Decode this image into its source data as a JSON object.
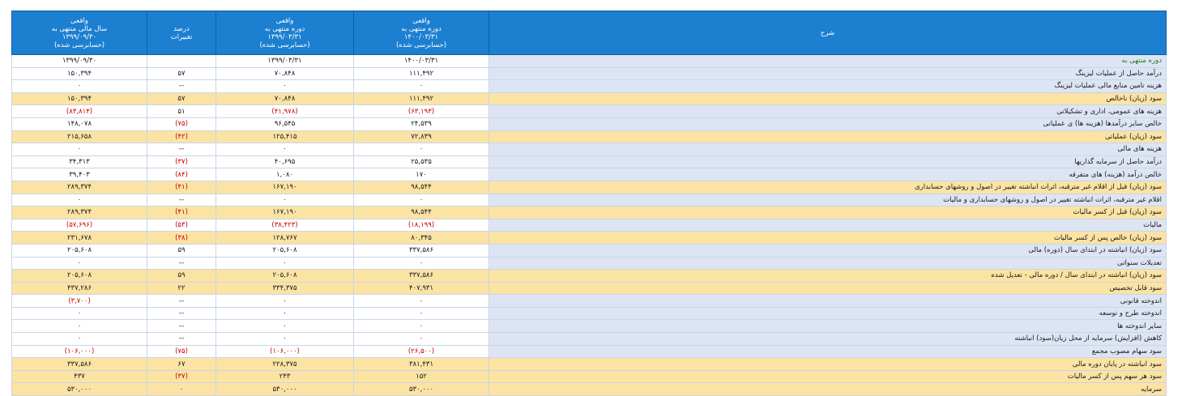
{
  "headers": {
    "desc": "شرح",
    "col1": [
      "واقعی",
      "دوره منتهی به",
      "۱۴۰۰/۰۳/۳۱",
      "(حسابرسی شده)"
    ],
    "col2": [
      "واقعی",
      "دوره منتهی به",
      "۱۳۹۹/۰۳/۳۱",
      "(حسابرسی شده)"
    ],
    "col3": [
      "درصد",
      "تغییرات"
    ],
    "col4": [
      "واقعی",
      "سال مالی منتهی به",
      "۱۳۹۹/۰۹/۳۰",
      "(حسابرسی شده)"
    ]
  },
  "rows": [
    {
      "label": "دوره منتهی به",
      "v1": "۱۴۰۰/۰۳/۳۱",
      "v2": "۱۳۹۹/۰۳/۳۱",
      "pct": "",
      "v4": "۱۳۹۹/۰۹/۳۰",
      "hl": false,
      "period": true,
      "neg": []
    },
    {
      "label": "درآمد حاصل از عملیات لیزینگ",
      "v1": "۱۱۱,۴۹۲",
      "v2": "۷۰,۸۴۸",
      "pct": "۵۷",
      "v4": "۱۵۰,۳۹۴",
      "hl": false,
      "neg": []
    },
    {
      "label": "هزینه تامین منابع مالی عملیات لیزینگ",
      "v1": "۰",
      "v2": "۰",
      "pct": "--",
      "v4": "۰",
      "hl": false,
      "neg": []
    },
    {
      "label": "سود (زیان) ناخالص",
      "v1": "۱۱۱,۴۹۲",
      "v2": "۷۰,۸۴۸",
      "pct": "۵۷",
      "v4": "۱۵۰,۳۹۴",
      "hl": true,
      "neg": []
    },
    {
      "label": "هزینه های عمومی، اداری و تشکیلاتی",
      "v1": "(۶۳,۱۹۳)",
      "v2": "(۴۱,۹۷۸)",
      "pct": "۵۱",
      "v4": "(۸۳,۸۱۴)",
      "hl": false,
      "neg": [
        "v1",
        "v2",
        "v4"
      ]
    },
    {
      "label": "خالص سایر درآمدها (هزینه ها) ی عملیاتی",
      "v1": "۲۴,۵۳۹",
      "v2": "۹۶,۵۴۵",
      "pct": "(۷۵)",
      "v4": "۱۴۸,۰۷۸",
      "hl": false,
      "neg": [
        "pct"
      ]
    },
    {
      "label": "سود (زیان) عملیاتی",
      "v1": "۷۲,۸۳۹",
      "v2": "۱۲۵,۴۱۵",
      "pct": "(۴۲)",
      "v4": "۲۱۵,۶۵۸",
      "hl": true,
      "neg": [
        "pct"
      ]
    },
    {
      "label": "هزینه های مالی",
      "v1": "۰",
      "v2": "۰",
      "pct": "--",
      "v4": "۰",
      "hl": false,
      "neg": []
    },
    {
      "label": "درآمد حاصل از سرمایه گذاریها",
      "v1": "۲۵,۵۳۵",
      "v2": "۴۰,۶۹۵",
      "pct": "(۳۷)",
      "v4": "۳۴,۳۱۳",
      "hl": false,
      "neg": [
        "pct"
      ]
    },
    {
      "label": "خالص درآمد (هزینه) های متفرقه",
      "v1": "۱۷۰",
      "v2": "۱,۰۸۰",
      "pct": "(۸۴)",
      "v4": "۳۹,۴۰۳",
      "hl": false,
      "neg": [
        "pct"
      ]
    },
    {
      "label": "سود (زیان) قبل از اقلام غیر مترقبه، اثرات انباشته تغییر در اصول و روشهای حسابداری",
      "v1": "۹۸,۵۴۴",
      "v2": "۱۶۷,۱۹۰",
      "pct": "(۴۱)",
      "v4": "۲۸۹,۳۷۴",
      "hl": true,
      "neg": [
        "pct"
      ]
    },
    {
      "label": "اقلام غیر مترقبه، اثرات انباشته تغییر در اصول و روشهای حسابداری و مالیات",
      "v1": "۰",
      "v2": "۰",
      "pct": "--",
      "v4": "۰",
      "hl": false,
      "neg": []
    },
    {
      "label": "سود (زیان) قبل از کسر مالیات",
      "v1": "۹۸,۵۴۴",
      "v2": "۱۶۷,۱۹۰",
      "pct": "(۴۱)",
      "v4": "۲۸۹,۳۷۴",
      "hl": true,
      "neg": [
        "pct"
      ]
    },
    {
      "label": "مالیات",
      "v1": "(۱۸,۱۹۹)",
      "v2": "(۳۸,۴۲۳)",
      "pct": "(۵۳)",
      "v4": "(۵۷,۶۹۶)",
      "hl": false,
      "neg": [
        "v1",
        "v2",
        "pct",
        "v4"
      ]
    },
    {
      "label": "سود (زیان) خالص پس از کسر مالیات",
      "v1": "۸۰,۳۴۵",
      "v2": "۱۲۸,۷۶۷",
      "pct": "(۳۸)",
      "v4": "۲۳۱,۶۷۸",
      "hl": true,
      "neg": [
        "pct"
      ]
    },
    {
      "label": "سود (زیان) انباشته در ابتدای سال (دوره) مالی",
      "v1": "۳۳۷,۵۸۶",
      "v2": "۲۰۵,۶۰۸",
      "pct": "۵۹",
      "v4": "۲۰۵,۶۰۸",
      "hl": false,
      "neg": []
    },
    {
      "label": "تعدیلات سنواتی",
      "v1": "۰",
      "v2": "۰",
      "pct": "--",
      "v4": "۰",
      "hl": false,
      "neg": []
    },
    {
      "label": "سود (زیان) انباشته در ابتدای سال / دوره مالی - تعدیل شده",
      "v1": "۳۳۷,۵۸۶",
      "v2": "۲۰۵,۶۰۸",
      "pct": "۵۹",
      "v4": "۲۰۵,۶۰۸",
      "hl": true,
      "neg": []
    },
    {
      "label": "سود قابل تخصیص",
      "v1": "۴۰۷,۹۳۱",
      "v2": "۳۳۴,۳۷۵",
      "pct": "۲۲",
      "v4": "۴۳۷,۲۸۶",
      "hl": true,
      "neg": []
    },
    {
      "label": "اندوخته قانونی",
      "v1": "۰",
      "v2": "۰",
      "pct": "--",
      "v4": "(۳,۷۰۰)",
      "hl": false,
      "neg": [
        "v4"
      ]
    },
    {
      "label": "اندوخته طرح و توسعه",
      "v1": "۰",
      "v2": "۰",
      "pct": "--",
      "v4": "۰",
      "hl": false,
      "neg": []
    },
    {
      "label": "سایر اندوخته ها",
      "v1": "۰",
      "v2": "۰",
      "pct": "--",
      "v4": "۰",
      "hl": false,
      "neg": []
    },
    {
      "label": "کاهش (افزایش) سرمایه از محل زیان(سود) انباشته",
      "v1": "۰",
      "v2": "۰",
      "pct": "--",
      "v4": "۰",
      "hl": false,
      "neg": []
    },
    {
      "label": "سود سهام مصوب مجمع",
      "v1": "(۲۶,۵۰۰)",
      "v2": "(۱۰۶,۰۰۰)",
      "pct": "(۷۵)",
      "v4": "(۱۰۶,۰۰۰)",
      "hl": false,
      "neg": [
        "v1",
        "v2",
        "pct",
        "v4"
      ]
    },
    {
      "label": "سود انباشته در پایان دوره مالی",
      "v1": "۳۸۱,۴۳۱",
      "v2": "۲۲۸,۳۷۵",
      "pct": "۶۷",
      "v4": "۳۳۷,۵۸۶",
      "hl": true,
      "neg": []
    },
    {
      "label": "سود هر سهم پس از کسر مالیات",
      "v1": "۱۵۲",
      "v2": "۲۴۳",
      "pct": "(۳۷)",
      "v4": "۴۳۷",
      "hl": true,
      "neg": [
        "pct"
      ]
    },
    {
      "label": "سرمایه",
      "v1": "۵۳۰,۰۰۰",
      "v2": "۵۳۰,۰۰۰",
      "pct": "۰",
      "v4": "۵۳۰,۰۰۰",
      "hl": true,
      "neg": []
    }
  ]
}
